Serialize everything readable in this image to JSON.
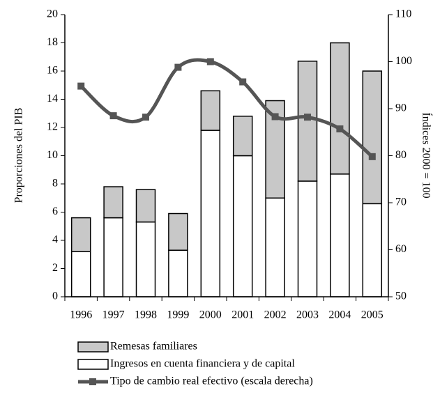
{
  "chart_data": {
    "type": "bar",
    "stacked": true,
    "categories": [
      "1996",
      "1997",
      "1998",
      "1999",
      "2000",
      "2001",
      "2002",
      "2003",
      "2004",
      "2005"
    ],
    "ylabel": "Proporciones del PIB",
    "y2label": "Índices 2000 = 100",
    "ylim": [
      0,
      20
    ],
    "yticks": [
      0,
      2,
      4,
      6,
      8,
      10,
      12,
      14,
      16,
      18,
      20
    ],
    "y2lim": [
      50,
      110
    ],
    "y2ticks": [
      50,
      60,
      70,
      80,
      90,
      100,
      110
    ],
    "series": [
      {
        "name": "Ingresos en cuenta financiera y de capital",
        "color": "#ffffff",
        "values": [
          3.2,
          5.6,
          5.3,
          3.3,
          11.8,
          10.0,
          7.0,
          8.2,
          8.7,
          6.6
        ]
      },
      {
        "name": "Remesas familiares",
        "color": "#c8c8c8",
        "values": [
          2.4,
          2.2,
          2.3,
          2.6,
          2.8,
          2.8,
          6.9,
          8.5,
          9.3,
          9.4
        ]
      },
      {
        "name": "Tipo de cambio real efectivo (escala derecha)",
        "color": "#555555",
        "type": "line",
        "axis": "y2",
        "values": [
          94.8,
          88.5,
          88.2,
          98.8,
          100,
          95.7,
          88.3,
          88.2,
          85.7,
          79.8
        ]
      }
    ]
  }
}
